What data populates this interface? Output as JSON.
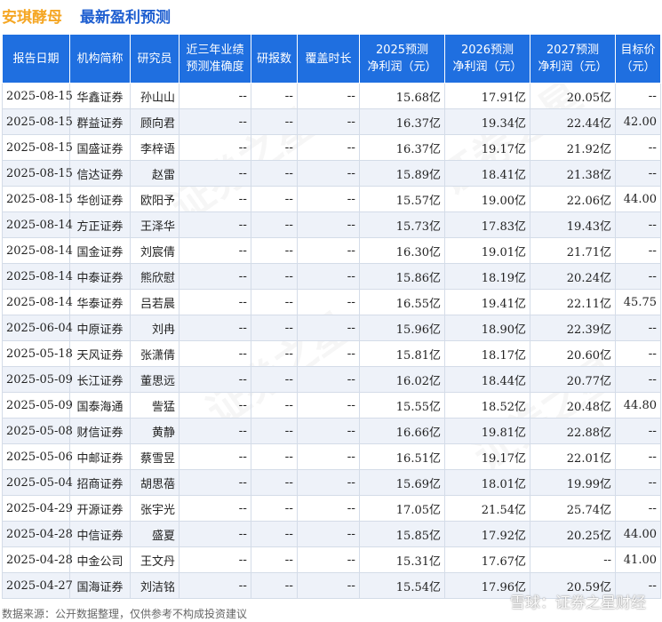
{
  "title": {
    "company": "安琪酵母",
    "main": "最新盈利预测"
  },
  "headers": {
    "date": "报告日期",
    "inst": "机构简称",
    "analyst": "研究员",
    "accuracy": [
      "近三年业绩",
      "预测准确度"
    ],
    "reports": "研报数",
    "coverage": "覆盖时长",
    "p2025": [
      "2025预测",
      "净利润（元）"
    ],
    "p2026": [
      "2026预测",
      "净利润（元）"
    ],
    "p2027": [
      "2027预测",
      "净利润（元）"
    ],
    "target": [
      "目标价",
      "（元）"
    ]
  },
  "rows": [
    {
      "date": "2025-08-15",
      "inst": "华鑫证券",
      "analyst": "孙山山",
      "accuracy": "--",
      "reports": "--",
      "coverage": "--",
      "p2025": "15.68亿",
      "p2026": "17.91亿",
      "p2027": "20.05亿",
      "target": "--"
    },
    {
      "date": "2025-08-15",
      "inst": "群益证券",
      "analyst": "顾向君",
      "accuracy": "--",
      "reports": "--",
      "coverage": "--",
      "p2025": "16.37亿",
      "p2026": "19.34亿",
      "p2027": "22.44亿",
      "target": "42.00"
    },
    {
      "date": "2025-08-15",
      "inst": "国盛证券",
      "analyst": "李梓语",
      "accuracy": "--",
      "reports": "--",
      "coverage": "--",
      "p2025": "16.37亿",
      "p2026": "19.17亿",
      "p2027": "21.92亿",
      "target": "--"
    },
    {
      "date": "2025-08-15",
      "inst": "信达证券",
      "analyst": "赵雷",
      "accuracy": "--",
      "reports": "--",
      "coverage": "--",
      "p2025": "15.89亿",
      "p2026": "18.41亿",
      "p2027": "21.38亿",
      "target": "--"
    },
    {
      "date": "2025-08-15",
      "inst": "华创证券",
      "analyst": "欧阳予",
      "accuracy": "--",
      "reports": "--",
      "coverage": "--",
      "p2025": "15.57亿",
      "p2026": "19.00亿",
      "p2027": "22.06亿",
      "target": "44.00"
    },
    {
      "date": "2025-08-14",
      "inst": "方正证券",
      "analyst": "王泽华",
      "accuracy": "--",
      "reports": "--",
      "coverage": "--",
      "p2025": "15.73亿",
      "p2026": "17.83亿",
      "p2027": "19.43亿",
      "target": "--"
    },
    {
      "date": "2025-08-14",
      "inst": "国金证券",
      "analyst": "刘宸倩",
      "accuracy": "--",
      "reports": "--",
      "coverage": "--",
      "p2025": "16.30亿",
      "p2026": "19.01亿",
      "p2027": "21.71亿",
      "target": "--"
    },
    {
      "date": "2025-08-14",
      "inst": "中泰证券",
      "analyst": "熊欣慰",
      "accuracy": "--",
      "reports": "--",
      "coverage": "--",
      "p2025": "15.86亿",
      "p2026": "18.19亿",
      "p2027": "20.24亿",
      "target": "--"
    },
    {
      "date": "2025-08-14",
      "inst": "华泰证券",
      "analyst": "吕若晨",
      "accuracy": "--",
      "reports": "--",
      "coverage": "--",
      "p2025": "16.55亿",
      "p2026": "19.41亿",
      "p2027": "22.11亿",
      "target": "45.75"
    },
    {
      "date": "2025-06-04",
      "inst": "中原证券",
      "analyst": "刘冉",
      "accuracy": "--",
      "reports": "--",
      "coverage": "--",
      "p2025": "15.96亿",
      "p2026": "18.90亿",
      "p2027": "22.39亿",
      "target": "--"
    },
    {
      "date": "2025-05-18",
      "inst": "天风证券",
      "analyst": "张潇倩",
      "accuracy": "--",
      "reports": "--",
      "coverage": "--",
      "p2025": "15.81亿",
      "p2026": "18.17亿",
      "p2027": "20.60亿",
      "target": "--"
    },
    {
      "date": "2025-05-09",
      "inst": "长江证券",
      "analyst": "董思远",
      "accuracy": "--",
      "reports": "--",
      "coverage": "--",
      "p2025": "16.02亿",
      "p2026": "18.44亿",
      "p2027": "20.77亿",
      "target": "--"
    },
    {
      "date": "2025-05-09",
      "inst": "国泰海通",
      "analyst": "訾猛",
      "accuracy": "--",
      "reports": "--",
      "coverage": "--",
      "p2025": "15.55亿",
      "p2026": "18.52亿",
      "p2027": "20.48亿",
      "target": "44.80"
    },
    {
      "date": "2025-05-08",
      "inst": "财信证券",
      "analyst": "黄静",
      "accuracy": "--",
      "reports": "--",
      "coverage": "--",
      "p2025": "16.66亿",
      "p2026": "19.81亿",
      "p2027": "22.88亿",
      "target": "--"
    },
    {
      "date": "2025-05-06",
      "inst": "中邮证券",
      "analyst": "蔡雪昱",
      "accuracy": "--",
      "reports": "--",
      "coverage": "--",
      "p2025": "16.51亿",
      "p2026": "19.17亿",
      "p2027": "22.01亿",
      "target": "--"
    },
    {
      "date": "2025-05-04",
      "inst": "招商证券",
      "analyst": "胡思蓓",
      "accuracy": "--",
      "reports": "--",
      "coverage": "--",
      "p2025": "15.69亿",
      "p2026": "18.01亿",
      "p2027": "19.99亿",
      "target": "--"
    },
    {
      "date": "2025-04-29",
      "inst": "开源证券",
      "analyst": "张宇光",
      "accuracy": "--",
      "reports": "--",
      "coverage": "--",
      "p2025": "17.05亿",
      "p2026": "21.54亿",
      "p2027": "25.74亿",
      "target": "--"
    },
    {
      "date": "2025-04-28",
      "inst": "中信证券",
      "analyst": "盛夏",
      "accuracy": "--",
      "reports": "--",
      "coverage": "--",
      "p2025": "15.85亿",
      "p2026": "17.92亿",
      "p2027": "20.25亿",
      "target": "44.00"
    },
    {
      "date": "2025-04-28",
      "inst": "中金公司",
      "analyst": "王文丹",
      "accuracy": "--",
      "reports": "--",
      "coverage": "--",
      "p2025": "15.31亿",
      "p2026": "17.67亿",
      "p2027": "--",
      "target": "41.00"
    },
    {
      "date": "2025-04-27",
      "inst": "国海证券",
      "analyst": "刘洁铭",
      "accuracy": "--",
      "reports": "--",
      "coverage": "--",
      "p2025": "15.54亿",
      "p2026": "17.96亿",
      "p2027": "20.59亿",
      "target": "--"
    }
  ],
  "footer": "数据来源：公开数据整理，仅供参考不构成投资建议",
  "watermark": "证券之星",
  "logo": "雪球：证券之星财经",
  "colors": {
    "header_bg": "#1f6fe0",
    "profit_text": "#e8202a",
    "title_company": "#f5a623",
    "title_main": "#1f5fd0"
  }
}
